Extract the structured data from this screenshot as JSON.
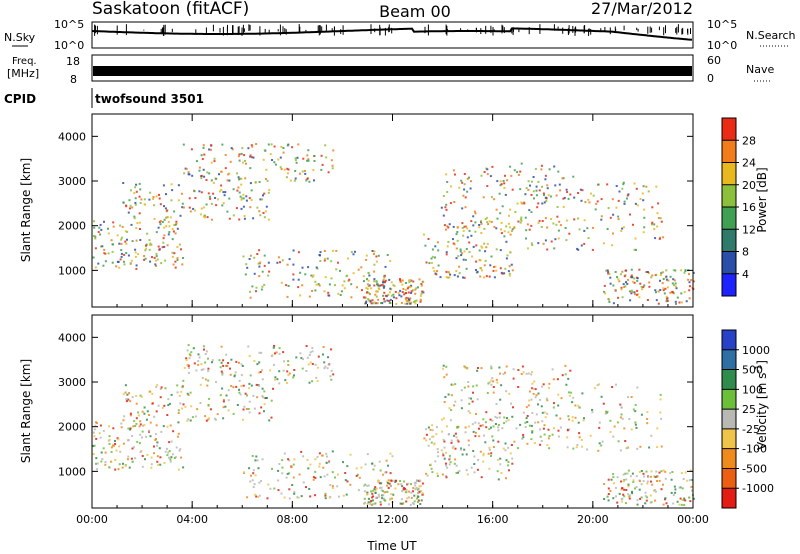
{
  "header": {
    "station": "Saskatoon (fitACF)",
    "beam": "Beam 00",
    "date": "27/Mar/2012"
  },
  "strips": {
    "nsky": {
      "label": "N.Sky",
      "tick_top": "10^5",
      "tick_bottom": "10^0"
    },
    "nsearch": {
      "label": "N.Search",
      "tick_top": "10^5",
      "tick_bottom": "10^0"
    },
    "freq": {
      "label_line1": "Freq.",
      "label_line2": "[MHz]",
      "tick_top": "18",
      "tick_bottom": "8"
    },
    "nave": {
      "label": "Nave",
      "tick_top": "60",
      "tick_bottom": "0"
    },
    "cpid": {
      "label": "CPID",
      "program": "twofsound 3501"
    }
  },
  "chart_data": [
    {
      "type": "heatmap",
      "name": "power-panel",
      "ylabel": "Slant Range [km]",
      "xlabel": "",
      "ylim": [
        180,
        4500
      ],
      "yticks": [
        "1000",
        "2000",
        "3000",
        "4000"
      ],
      "colorbar": {
        "label": "Power [dB]",
        "ticks": [
          "4",
          "8",
          "12",
          "16",
          "20",
          "24",
          "28"
        ],
        "colors": [
          "#1e22ff",
          "#2a4fa8",
          "#2f7a6a",
          "#3f9f52",
          "#8cc03a",
          "#e8b81f",
          "#f27c1a",
          "#ea2b16"
        ]
      },
      "scatter_color_scale": [
        "#2a4fa8",
        "#3f9f52",
        "#8cc03a",
        "#e8b81f",
        "#f27c1a",
        "#ea2b16"
      ]
    },
    {
      "type": "heatmap",
      "name": "velocity-panel",
      "ylabel": "Slant Range [km]",
      "xlabel": "Time UT",
      "ylim": [
        180,
        4500
      ],
      "yticks": [
        "1000",
        "2000",
        "3000",
        "4000"
      ],
      "xticks": [
        "00:00",
        "04:00",
        "08:00",
        "12:00",
        "16:00",
        "20:00",
        "00:00"
      ],
      "colorbar": {
        "label": "Velocity [m s^-1]",
        "ticks": [
          "1000",
          "500",
          "100",
          "25",
          "-25",
          "-100",
          "-500",
          "-1000"
        ],
        "colors": [
          "#2742c8",
          "#2f6fa4",
          "#2f8c4c",
          "#6cc039",
          "#b8b8b4",
          "#f0c34a",
          "#ef8a1c",
          "#ec5f12",
          "#e41d14"
        ]
      }
    }
  ]
}
